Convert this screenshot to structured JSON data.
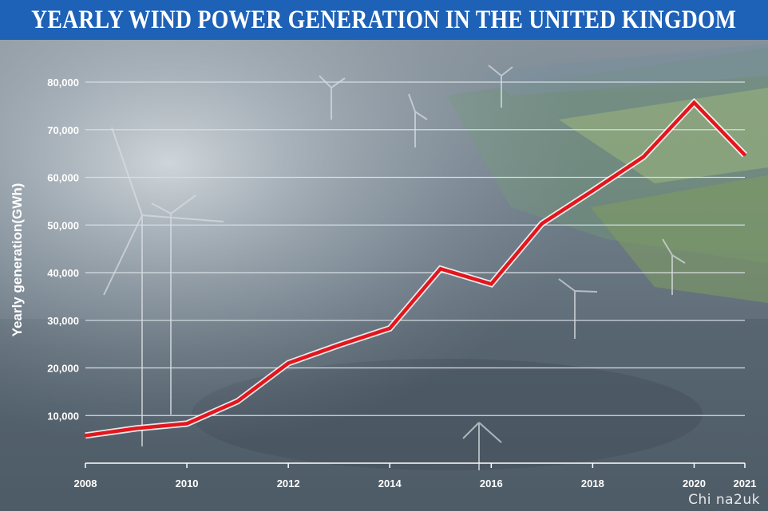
{
  "header": {
    "title": "YEARLY WIND POWER GENERATION IN THE UNITED KINGDOM"
  },
  "watermark": "Chi na2uk",
  "colors": {
    "title_bar": "#1e62b8",
    "line": "#e3161d",
    "gridline": "#d6dde3",
    "text": "#ffffff"
  },
  "chart_data": {
    "type": "line",
    "title": "YEARLY WIND POWER GENERATION IN THE UNITED KINGDOM",
    "xlabel": "",
    "ylabel": "Yearly generation(GWh)",
    "x": [
      2008,
      2009,
      2010,
      2011,
      2012,
      2013,
      2014,
      2015,
      2016,
      2017,
      2018,
      2019,
      2020,
      2021
    ],
    "series": [
      {
        "values": [
          5800,
          7300,
          8300,
          13000,
          21000,
          24800,
          28300,
          40800,
          37600,
          50300,
          57200,
          64300,
          75700,
          64700
        ]
      }
    ],
    "xticks": [
      "2008",
      "2010",
      "2012",
      "2014",
      "2016",
      "2018",
      "2020",
      "2021"
    ],
    "yticks": [
      "10,000",
      "20,000",
      "30,000",
      "40,000",
      "50,000",
      "60,000",
      "70,000",
      "80,000"
    ],
    "xlim": [
      2008,
      2021
    ],
    "ylim": [
      0,
      80000
    ],
    "grid": true,
    "legend": "none"
  }
}
